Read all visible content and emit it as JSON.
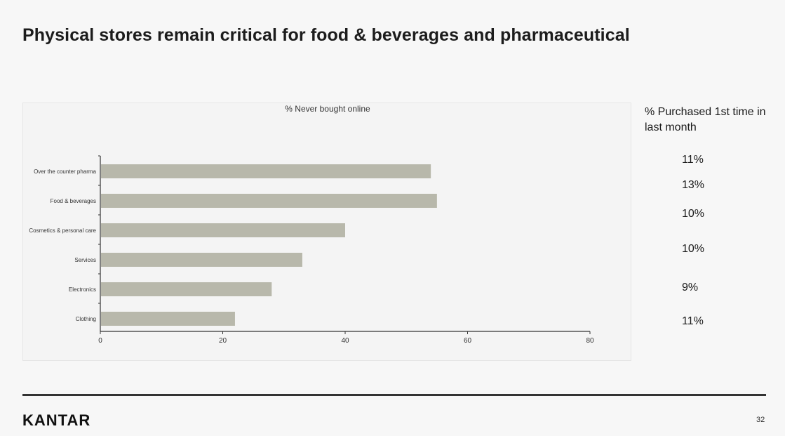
{
  "slide": {
    "title": "Physical stores remain critical for food & beverages and pharmaceutical",
    "side_header": "% Purchased 1st time in last month",
    "side_values": [
      "11%",
      "13%",
      "10%",
      "10%",
      "9%",
      "11%"
    ],
    "brand": "KANTAR",
    "page_number": "32"
  },
  "chart_data": {
    "type": "bar",
    "orientation": "horizontal",
    "title": "% Never bought online",
    "categories": [
      "Over the counter pharma",
      "Food & beverages",
      "Cosmetics & personal care",
      "Services",
      "Electronics",
      "Clothing"
    ],
    "values": [
      54,
      55,
      40,
      33,
      28,
      22
    ],
    "xlim": [
      0,
      80
    ],
    "xticks": [
      0,
      20,
      40,
      60,
      80
    ],
    "bar_color": "#b8b8ab",
    "grid": false,
    "legend": "none"
  }
}
